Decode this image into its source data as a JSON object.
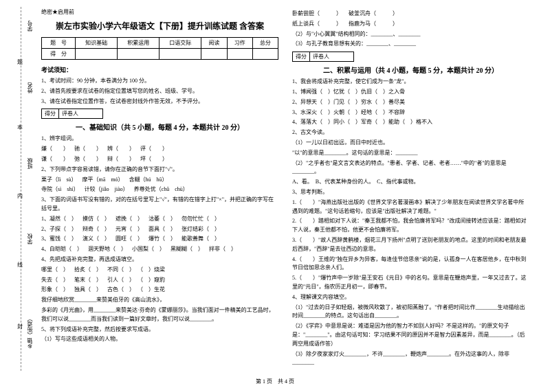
{
  "header_tag": "绝密★启用前",
  "title": "崇左市实验小学六年级语文【下册】提升训练试题 含答案",
  "side": {
    "l1": "学号",
    "l2": "姓名",
    "l3": "班级",
    "l4": "学校",
    "l5": "乡镇（街道）",
    "c1": "题",
    "c2": "本",
    "c3": "内",
    "c4": "线",
    "c5": "封"
  },
  "score_table": {
    "row1": [
      "题　号",
      "知识基础",
      "积累运用",
      "口语交际",
      "阅读",
      "习作",
      "总分"
    ],
    "row2": [
      "得　分",
      "",
      "",
      "",
      "",
      "",
      ""
    ]
  },
  "notice_title": "考试须知：",
  "notice": [
    "1、考试时间：90 分钟，本卷满分为 100 分。",
    "2、请首先按要求在试卷的指定位置填写您的姓名、班级、学号。",
    "3、请在试卷指定位置作答，在试卷密封线外作答无效，不予评分。"
  ],
  "score_box": {
    "a": "得分",
    "b": "评卷人"
  },
  "sec1_title": "一、基础知识（共 5 小题，每题 4 分，本题共计 20 分）",
  "sec1": {
    "q1": "1、辨字组词。",
    "q1_items": [
      "嫌（　　）",
      "驰（　　）",
      "辨（　　）",
      "评（　　）",
      "谦（　　）",
      "弛（　　）",
      "辩（　　）",
      "坪（　　）"
    ],
    "q2": "2、下列带点字容易读错，请你在正确的音节下面打\"√\"。",
    "q2_items": [
      "栗子（lì　sù）",
      "摩平（mā　mó）",
      "含糊（hú　hū）",
      "寺院（sì　shì）",
      "计较（jiǎo　jiào）",
      "养尊处优（chǔ　chù）"
    ],
    "q3": "3、下面的词语书写没有错的，对的在括号里写上\"√\"，有错的在错字上打\"×\"，并把正确的字写在括号里。",
    "q3_items": [
      "1、凝然（　）",
      "摸仿（　）",
      "遮挽（　）",
      "沽萎（　）",
      "勿勿忙忙（　）",
      "2、子探（　）",
      "辩奇（　）",
      "元宵（　）",
      "面具（　）",
      "张灯结彩（　）",
      "3、蜜饯（　）",
      "演义（　）",
      "圆旺（　）",
      "爆竹（　）",
      "能歌善舞（　）",
      "4、白皑皑（　）",
      "涸天野地（　）",
      "小国梨（　）",
      "黑糊糊（　）",
      "拌非（　）"
    ],
    "q4": "4、先把成语补充完整，再选成语填空。",
    "q4_items": [
      "哪里（　）",
      "拾炙（　）",
      "不同（　）",
      "（　）烧梁",
      "失去（　）",
      "笔末（　）",
      "引人（　）",
      "（　）窥豹",
      "形象（　）",
      "独具（　）",
      "古色（　）",
      "（　）生花"
    ],
    "q4_tail1": "我仔细地欣赏________来赞美伯牙的《高山流水》，",
    "q4_tail2": "多彩的《月光曲》，用________来赞美达·芬奇的《蒙娜丽莎》。当我们面对一件精美的工艺品时，我们可以说________而当我们读到一篇好文章时，我们可以说________。",
    "q5": "5、将下列成语补充完整，然后按要求写成语。",
    "q5_1": "（1）写与这些成语相关的人物。"
  },
  "right_top": [
    "卧薪尝胆（　　　）",
    "破釜沉舟（　　　）",
    "纸上谈兵（　　　）",
    "指鹿为马（　　　）",
    "（2）与\"小心翼翼\"结构相同的：________、________",
    "（3）与孔子教育思想有关的：________、________"
  ],
  "sec2_title": "二、积累与运用（共 4 小题，每题 5 分，本题共计 20 分）",
  "sec2": {
    "q1": "1、我会将成语补充完整，使它们成为一条\"龙\"。",
    "q1_items": [
      "1、博闻强（　）忆犹（　）仇旧（　）之入骨",
      "2、异想天（　）门见（　）穷水（　）善尽美",
      "3、水深火（　）火朝（　）经地（　）不容辞",
      "4、落落大（　）同小（　）军奇（　）能助（　）格不入"
    ],
    "q2": "2、古文今读。",
    "q2_1": "（1）一儿以日初出远，而日中时近也。",
    "q2_2": "\"以\"的意思是________。这句话的意思是：________",
    "q2_3": "（2）\"之乎者也\"是文言文表达的特点。\"患者、学者、记者、老者……\"中的\"者\"的意思是________。",
    "q2_opts": "A、看。　B、代表某种身份的人。　C、指代事或物。",
    "q3": "3、思考判断。",
    "q3_1": "1.（　　）\"海燕出版社出版的《世界文学名著漫画本》解决了少年朋友在阅读世界文学名著中所遇到的难题。\"这句话若缩句，应该是\"出版社解决了难题。\"",
    "q3_2": "2.（　　）踏相如对下人说：\"秦王我都不怕，我会怕廉将军吗？\"改成间接转述应该是：踏相如对下人说，秦王他都不怕，他更不会怕廉将军。",
    "q3_3": "3.（　　）\"故人西辞黄鹤楼，烟花三月下扬州\"点明了送别老朋友的地点。这里的时间和老朋友最后西辞，\"西辞\"是去往西边的意思。",
    "q3_4": "4.（　　）王维的\"独在异乡为异客，每逢佳节倍思亲\"说的是，认孤身一人在客居他乡，在中秋到节日倍加思念亲人们。",
    "q3_5": "5.（　　）\"爆竹声中一岁除\"是王安石《元日》中的名句。意思是在鞭炮声里，一年又过去了。这里的\"元日\"，指农历正月初一，即春节。",
    "q4": "4、理解课文内容填空。",
    "q4_1": "（1）\"过去的日子如轻烟，被微风吹散了，被初阳蒸融了。\"作者把时间比作________生动描绘出时间________的特点。这句话出自________。",
    "q4_2": "（2）《学弈》中意思是说：难道是因为他的智力不如别人好吗？不是这样的。\"的原文句子是：\"________\"。由这句话可知：学习结果不同的原因并不是智力因素差异，而是________。（后两空用成语作答）",
    "q4_3": "（3）除夕夜家家灯火________，不许________，鞭炮声________。在外边这事的人，除非________"
  },
  "footer": "第 1 页　共 4 页"
}
